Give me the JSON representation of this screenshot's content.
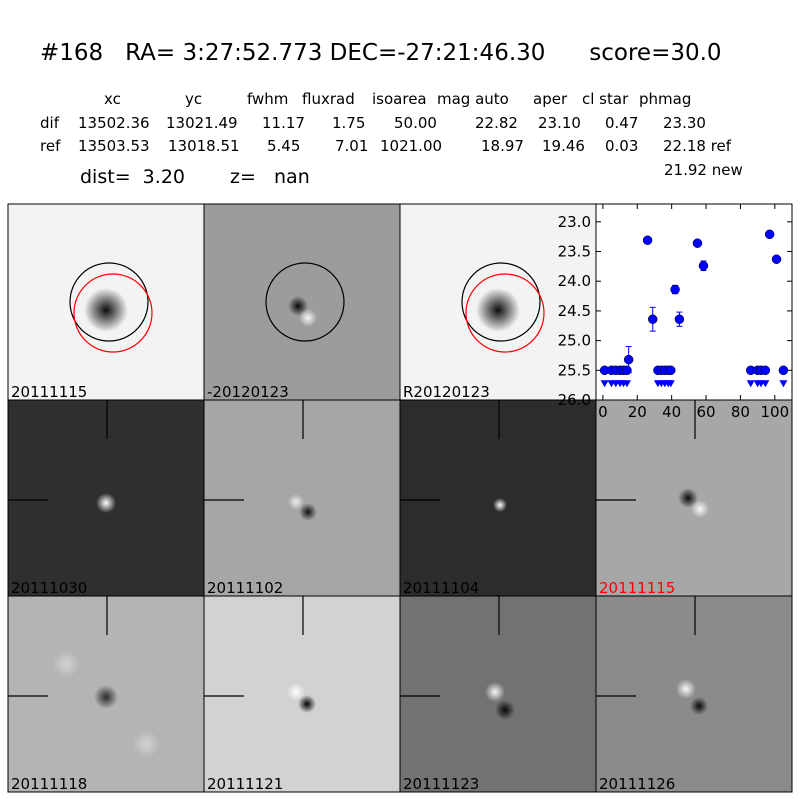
{
  "header": {
    "title": "#168   RA= 3:27:52.773 DEC=-27:21:46.30      score=30.0",
    "columns": [
      "xc",
      "yc",
      "fwhm",
      "fluxrad",
      "isoarea",
      "mag auto",
      "aper",
      "cl star",
      "phmag"
    ],
    "rows": [
      {
        "label": "dif",
        "values": [
          "13502.36",
          "13021.49",
          "11.17",
          "1.75",
          "50.00",
          "22.82",
          "23.10",
          "0.47",
          "23.30"
        ]
      },
      {
        "label": "ref",
        "values": [
          "13503.53",
          "13018.51",
          "5.45",
          "7.01",
          "1021.00",
          "18.97",
          "19.46",
          "0.03",
          "22.18 ref"
        ]
      }
    ],
    "dist": "dist=  3.20",
    "z": "z=   nan",
    "new_mag": "21.92 new"
  },
  "stamps": [
    {
      "label": "20111115",
      "label_color": "#000000"
    },
    {
      "label": "-20120123",
      "label_color": "#000000"
    },
    {
      "label": "R20120123",
      "label_color": "#000000"
    },
    {
      "label": "20111030",
      "label_color": "#000000"
    },
    {
      "label": "20111102",
      "label_color": "#000000"
    },
    {
      "label": "20111104",
      "label_color": "#000000"
    },
    {
      "label": "20111115",
      "label_color": "#ff0000"
    },
    {
      "label": "20111118",
      "label_color": "#000000"
    },
    {
      "label": "20111121",
      "label_color": "#000000"
    },
    {
      "label": "20111123",
      "label_color": "#000000"
    },
    {
      "label": "20111126",
      "label_color": "#000000"
    }
  ],
  "chart_data": {
    "type": "scatter",
    "title": "",
    "xlabel": "",
    "ylabel": "",
    "xlim": [
      -4,
      110
    ],
    "ylim": [
      26.0,
      22.7
    ],
    "y_inverted": true,
    "xticks": [
      "0",
      "20",
      "40",
      "60",
      "80",
      "100"
    ],
    "yticks": [
      "23.0",
      "23.5",
      "24.0",
      "24.5",
      "25.0",
      "25.5",
      "26.0"
    ],
    "color": "#0000ff",
    "detections": [
      {
        "x": 15,
        "y": 25.32,
        "err": 0.22
      },
      {
        "x": 26,
        "y": 23.31,
        "err": 0.02
      },
      {
        "x": 29,
        "y": 24.64,
        "err": 0.2
      },
      {
        "x": 42,
        "y": 24.14,
        "err": 0.07
      },
      {
        "x": 44.5,
        "y": 24.64,
        "err": 0.12
      },
      {
        "x": 55,
        "y": 23.36,
        "err": 0.05
      },
      {
        "x": 58.5,
        "y": 23.74,
        "err": 0.08
      },
      {
        "x": 97,
        "y": 23.21,
        "err": 0.02
      },
      {
        "x": 101,
        "y": 23.63,
        "err": 0.02
      }
    ],
    "upper_limits": [
      {
        "x": 1,
        "y": 25.5
      },
      {
        "x": 5,
        "y": 25.5
      },
      {
        "x": 7.5,
        "y": 25.5
      },
      {
        "x": 10,
        "y": 25.5
      },
      {
        "x": 12,
        "y": 25.5
      },
      {
        "x": 14,
        "y": 25.5
      },
      {
        "x": 32,
        "y": 25.5
      },
      {
        "x": 34,
        "y": 25.5
      },
      {
        "x": 36,
        "y": 25.5
      },
      {
        "x": 38,
        "y": 25.5
      },
      {
        "x": 39.5,
        "y": 25.5
      },
      {
        "x": 86,
        "y": 25.5
      },
      {
        "x": 90,
        "y": 25.5
      },
      {
        "x": 92,
        "y": 25.5
      },
      {
        "x": 94.5,
        "y": 25.5
      },
      {
        "x": 105,
        "y": 25.5
      }
    ]
  }
}
